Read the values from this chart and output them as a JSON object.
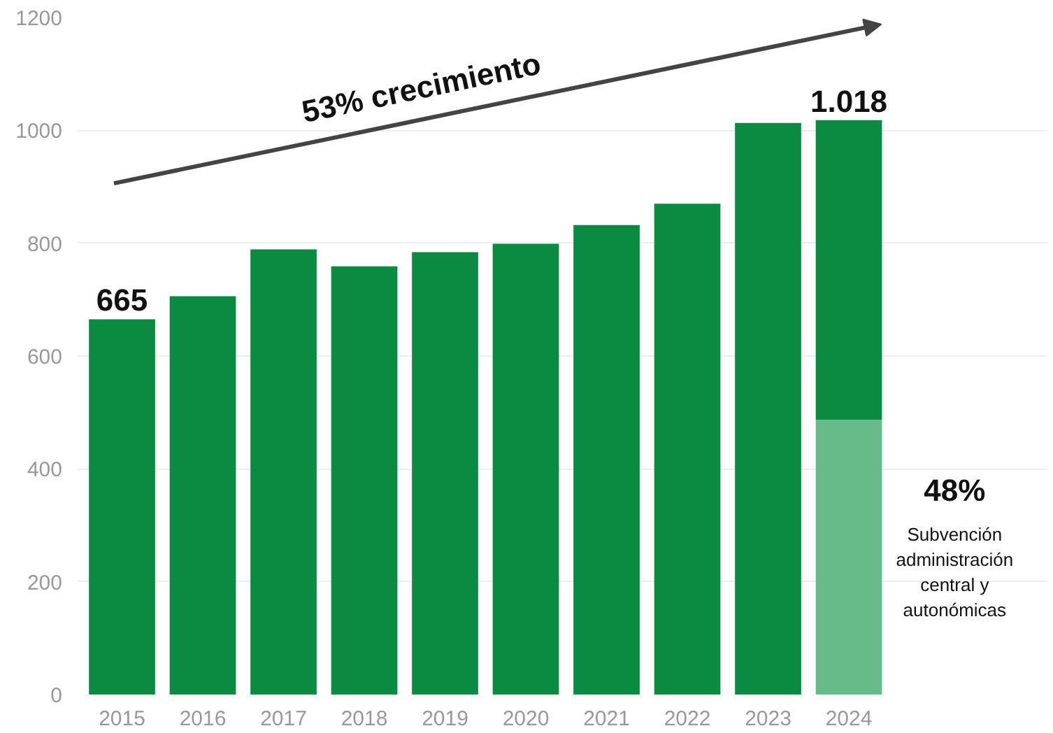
{
  "chart_data": {
    "type": "bar",
    "stacked": true,
    "categories": [
      "2015",
      "2016",
      "2017",
      "2018",
      "2019",
      "2020",
      "2021",
      "2022",
      "2023",
      "2024"
    ],
    "series": [
      {
        "color": "#66bb88",
        "values": [
          null,
          null,
          null,
          null,
          null,
          null,
          null,
          null,
          null,
          487
        ]
      },
      {
        "color": "#0b8a42",
        "values": [
          665,
          706,
          789,
          759,
          784,
          799,
          832,
          870,
          1013,
          531
        ]
      }
    ],
    "totals": [
      "665",
      null,
      null,
      null,
      null,
      null,
      null,
      null,
      null,
      "1.018"
    ],
    "ylim": [
      0,
      1200
    ],
    "yticks": [
      0,
      200,
      400,
      600,
      800,
      1000,
      1200
    ],
    "grid": "y",
    "annotations": [
      "53% crecimiento",
      "48%",
      "Subvención administración central y autonómicas"
    ]
  }
}
